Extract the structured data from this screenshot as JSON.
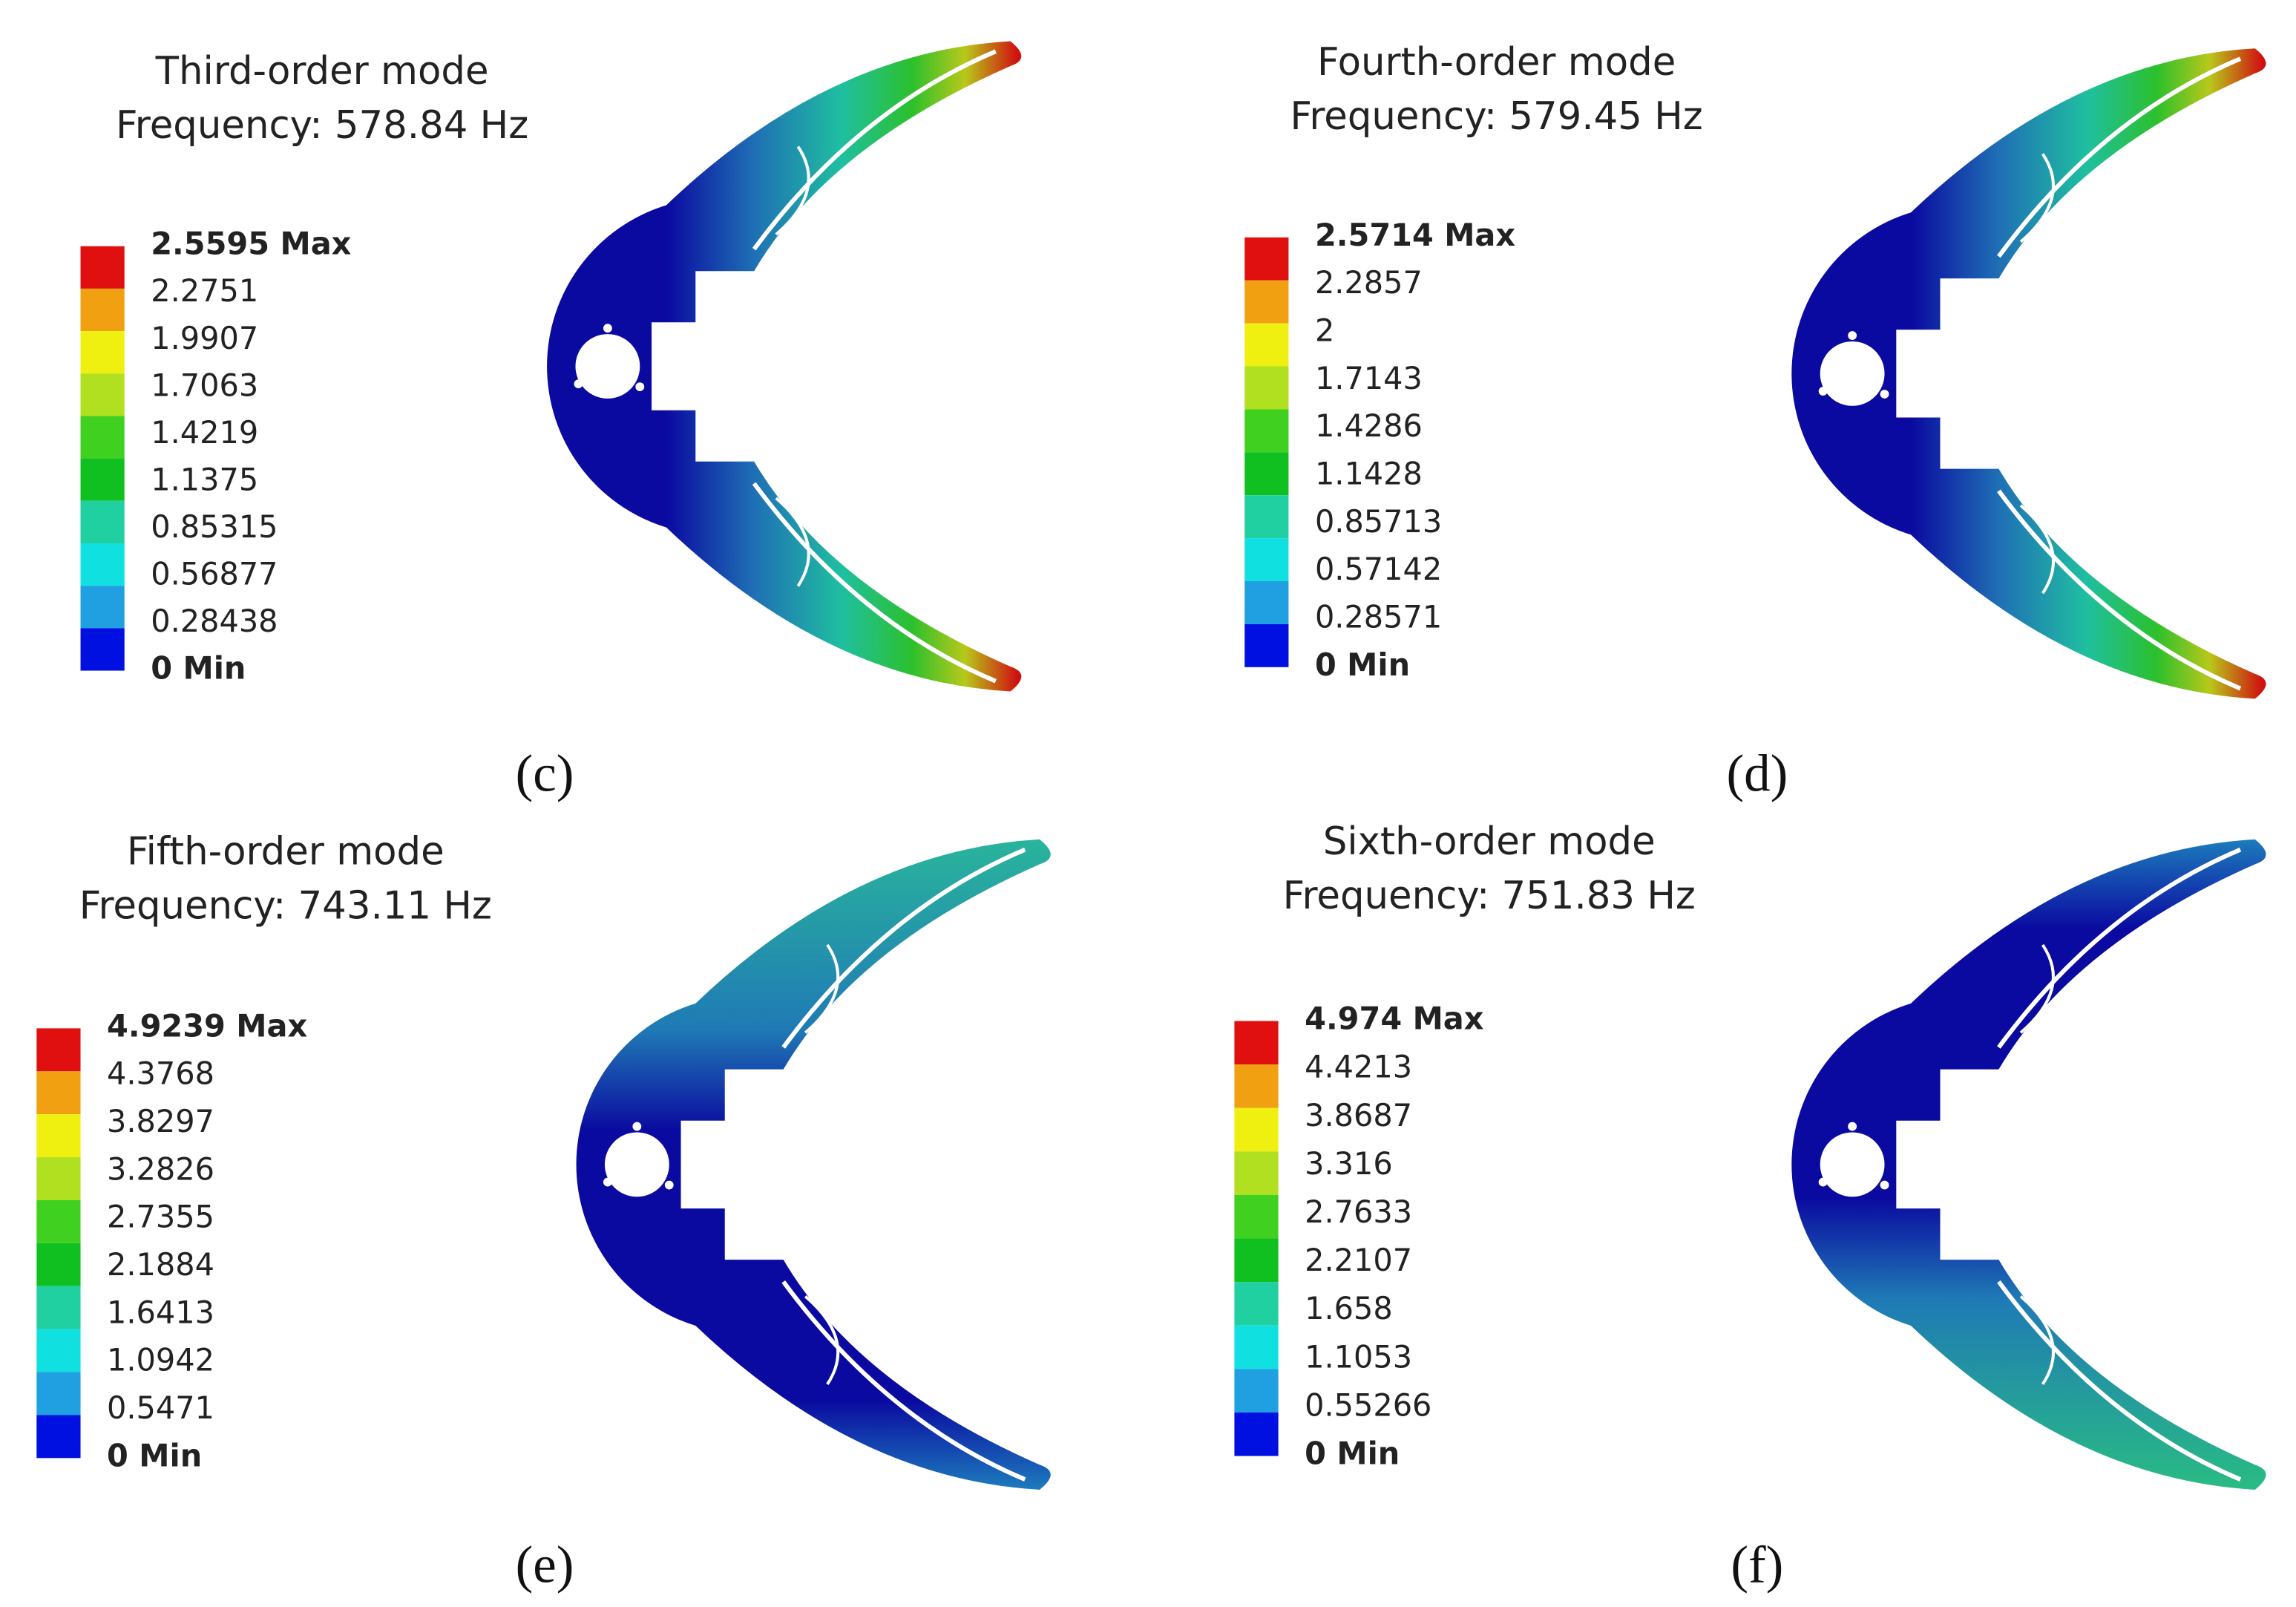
{
  "panels": [
    {
      "title": "Third-order mode",
      "frequency": "Frequency: 578.84 Hz",
      "legend": [
        "2.5595 Max",
        "2.2751",
        "1.9907",
        "1.7063",
        "1.4219",
        "1.1375",
        "0.85315",
        "0.56877",
        "0.28438",
        "0 Min"
      ],
      "label": "(c)"
    },
    {
      "title": "Fourth-order mode",
      "frequency": "Frequency: 579.45 Hz",
      "legend": [
        "2.5714 Max",
        "2.2857",
        "2",
        "1.7143",
        "1.4286",
        "1.1428",
        "0.85713",
        "0.57142",
        "0.28571",
        "0 Min"
      ],
      "label": "(d)"
    },
    {
      "title": "Fifth-order mode",
      "frequency": "Frequency: 743.11 Hz",
      "legend": [
        "4.9239 Max",
        "4.3768",
        "3.8297",
        "3.2826",
        "2.7355",
        "2.1884",
        "1.6413",
        "1.0942",
        "0.5471",
        "0 Min"
      ],
      "label": "(e)"
    },
    {
      "title": "Sixth-order mode",
      "frequency": "Frequency: 751.83 Hz",
      "legend": [
        "4.974 Max",
        "4.4213",
        "3.8687",
        "3.316",
        "2.7633",
        "2.2107",
        "1.658",
        "1.1053",
        "0.55266",
        "0 Min"
      ],
      "label": "(f)"
    }
  ]
}
